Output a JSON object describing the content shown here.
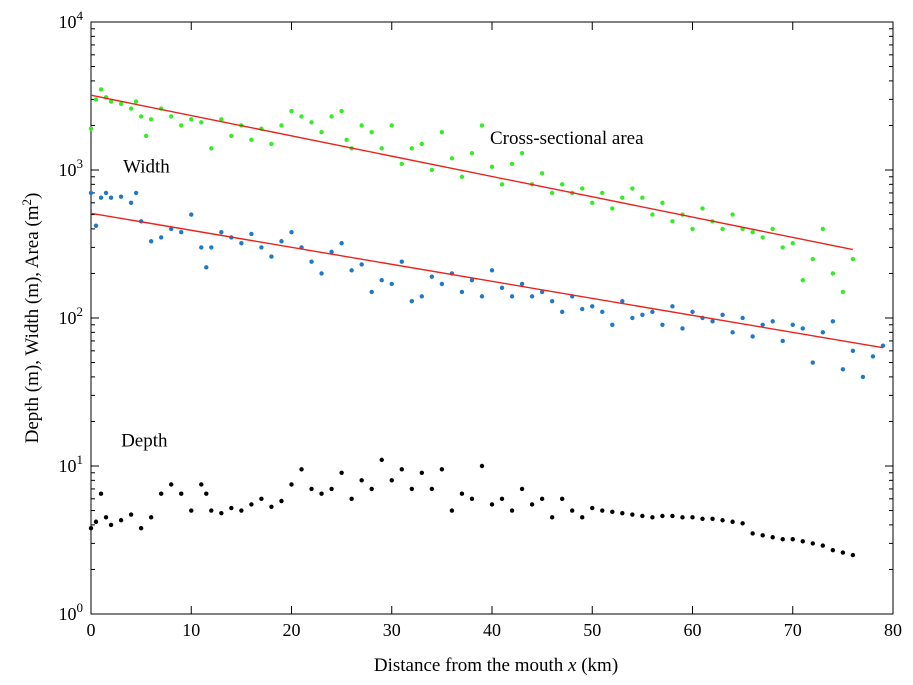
{
  "chart_data": {
    "type": "scatter",
    "xlabel": "Distance from the mouth x (km)",
    "xlabel_parts": {
      "prefix": "Distance from the mouth ",
      "var": "x",
      "suffix": " (km)"
    },
    "ylabel": "Depth (m), Width (m), Area (m2)",
    "ylabel_parts": {
      "main": "Depth (m), Width (m), Area (m",
      "sup": "2",
      "close": ")"
    },
    "x_scale": "linear",
    "y_scale": "log",
    "xlim": [
      0,
      80
    ],
    "ylim": [
      1,
      10000
    ],
    "x_ticks": [
      0,
      10,
      20,
      30,
      40,
      50,
      60,
      70,
      80
    ],
    "x_tick_labels": [
      "0",
      "10",
      "20",
      "30",
      "40",
      "50",
      "60",
      "70",
      "80"
    ],
    "y_ticks": [
      1,
      10,
      100,
      1000,
      10000
    ],
    "y_tick_labels": [
      {
        "base": "10",
        "exp": "0"
      },
      {
        "base": "10",
        "exp": "1"
      },
      {
        "base": "10",
        "exp": "2"
      },
      {
        "base": "10",
        "exp": "3"
      },
      {
        "base": "10",
        "exp": "4"
      }
    ],
    "grid": false,
    "annotations": [
      {
        "text": "Cross-sectional area",
        "x": 39.8,
        "y": 1500
      },
      {
        "text": "Width",
        "x": 3.2,
        "y": 960
      },
      {
        "text": "Depth",
        "x": 3.0,
        "y": 13.5
      }
    ],
    "series": [
      {
        "color": "#33ee22",
        "x": [
          0,
          0.5,
          1,
          1.5,
          2,
          3,
          4,
          4.5,
          5,
          5.5,
          6,
          7,
          8,
          9,
          10,
          11,
          12,
          13,
          14,
          15,
          16,
          17,
          18,
          19,
          20,
          21,
          22,
          23,
          24,
          25,
          25.5,
          26,
          27,
          28,
          29,
          30,
          31,
          32,
          33,
          34,
          35,
          36,
          37,
          38,
          39,
          40,
          41,
          42,
          43,
          44,
          45,
          46,
          47,
          48,
          49,
          50,
          51,
          52,
          53,
          54,
          55,
          56,
          57,
          58,
          59,
          60,
          61,
          62,
          63,
          64,
          65,
          66,
          67,
          68,
          69,
          70,
          71,
          72,
          73,
          74,
          75,
          76
        ],
        "y": [
          1900,
          3000,
          3500,
          3100,
          2900,
          2800,
          2600,
          2900,
          2300,
          1700,
          2200,
          2600,
          2300,
          2000,
          2200,
          2100,
          1400,
          2200,
          1700,
          2000,
          1600,
          1900,
          1500,
          2000,
          2500,
          2300,
          2100,
          1800,
          2300,
          2500,
          1600,
          1400,
          2000,
          1800,
          1400,
          2000,
          1100,
          1400,
          1500,
          1000,
          1800,
          1200,
          900,
          1300,
          2000,
          1050,
          800,
          1100,
          1300,
          800,
          950,
          700,
          800,
          700,
          750,
          600,
          700,
          550,
          650,
          750,
          650,
          500,
          600,
          450,
          500,
          400,
          550,
          450,
          400,
          500,
          400,
          380,
          350,
          400,
          300,
          320,
          180,
          250,
          400,
          200,
          150,
          250
        ]
      },
      {
        "color": "#1f78c8",
        "x": [
          0,
          0.5,
          1,
          1.5,
          2,
          3,
          4,
          4.5,
          5,
          6,
          7,
          8,
          9,
          10,
          11,
          11.5,
          12,
          13,
          14,
          15,
          16,
          17,
          18,
          19,
          20,
          21,
          22,
          23,
          24,
          25,
          26,
          27,
          28,
          29,
          30,
          31,
          32,
          33,
          34,
          35,
          36,
          37,
          38,
          39,
          40,
          41,
          42,
          43,
          44,
          45,
          46,
          47,
          48,
          49,
          50,
          51,
          52,
          53,
          54,
          55,
          56,
          57,
          58,
          59,
          60,
          61,
          62,
          63,
          64,
          65,
          66,
          67,
          68,
          69,
          70,
          71,
          72,
          73,
          74,
          75,
          76,
          77,
          78,
          79
        ],
        "y": [
          700,
          420,
          650,
          700,
          650,
          660,
          600,
          700,
          450,
          330,
          350,
          400,
          380,
          500,
          300,
          220,
          300,
          380,
          350,
          320,
          370,
          300,
          260,
          330,
          380,
          300,
          240,
          200,
          280,
          320,
          210,
          230,
          150,
          180,
          170,
          240,
          130,
          140,
          190,
          170,
          200,
          150,
          180,
          140,
          210,
          160,
          140,
          170,
          140,
          150,
          130,
          110,
          140,
          115,
          120,
          110,
          90,
          130,
          100,
          105,
          110,
          90,
          120,
          85,
          110,
          100,
          95,
          105,
          80,
          100,
          75,
          90,
          95,
          70,
          90,
          85,
          50,
          80,
          95,
          45,
          60,
          40,
          55,
          65
        ]
      },
      {
        "color": "#000000",
        "x": [
          0,
          0.5,
          1,
          1.5,
          2,
          3,
          4,
          5,
          6,
          7,
          8,
          9,
          10,
          11,
          11.5,
          12,
          13,
          14,
          15,
          16,
          17,
          18,
          19,
          20,
          21,
          22,
          23,
          24,
          25,
          26,
          27,
          28,
          29,
          30,
          31,
          32,
          33,
          34,
          35,
          36,
          37,
          38,
          39,
          40,
          41,
          42,
          43,
          44,
          45,
          46,
          47,
          48,
          49,
          50,
          51,
          52,
          53,
          54,
          55,
          56,
          57,
          58,
          59,
          60,
          61,
          62,
          63,
          64,
          65,
          66,
          67,
          68,
          69,
          70,
          71,
          72,
          73,
          74,
          75,
          76
        ],
        "y": [
          3.8,
          4.2,
          6.5,
          4.5,
          4.0,
          4.3,
          4.7,
          3.8,
          4.5,
          6.5,
          7.5,
          6.5,
          5.0,
          7.5,
          6.5,
          5.0,
          4.8,
          5.2,
          5.0,
          5.5,
          6.0,
          5.3,
          5.8,
          7.5,
          9.5,
          7.0,
          6.5,
          7.0,
          9.0,
          6.0,
          8.0,
          7.0,
          11.0,
          8.0,
          9.5,
          7.0,
          9.0,
          7.0,
          9.5,
          5.0,
          6.5,
          6.0,
          10.0,
          5.5,
          6.0,
          5.0,
          7.0,
          5.5,
          6.0,
          4.5,
          6.0,
          5.0,
          4.5,
          5.2,
          5.0,
          4.9,
          4.8,
          4.7,
          4.6,
          4.5,
          4.6,
          4.6,
          4.5,
          4.5,
          4.4,
          4.4,
          4.3,
          4.2,
          4.1,
          3.5,
          3.4,
          3.3,
          3.2,
          3.2,
          3.1,
          3.0,
          2.9,
          2.7,
          2.6,
          2.5
        ]
      }
    ],
    "trend_lines": [
      {
        "color": "#e8231c",
        "x": [
          0,
          76
        ],
        "y": [
          3200,
          290
        ]
      },
      {
        "color": "#e8231c",
        "x": [
          0,
          79
        ],
        "y": [
          510,
          63
        ]
      }
    ]
  }
}
